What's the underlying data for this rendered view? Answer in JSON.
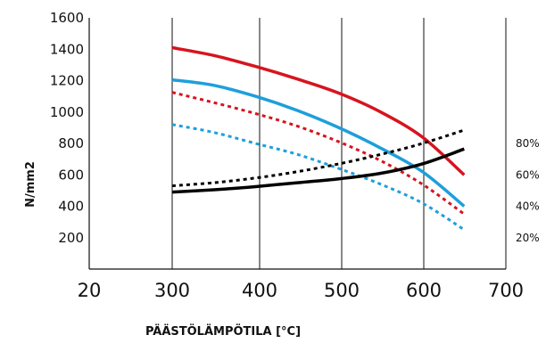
{
  "chart_data": {
    "type": "line",
    "xlabel": "PÄÄSTÖLÄMPÖTILA [°C]",
    "ylabel": "N/mm2",
    "xlim": [
      300,
      700
    ],
    "ylim": [
      0,
      1600
    ],
    "x_tick_labels": [
      "20",
      "300",
      "400",
      "500",
      "600",
      "700"
    ],
    "y_ticks": [
      200,
      400,
      600,
      800,
      1000,
      1200,
      1400,
      1600
    ],
    "y_tick_labels": [
      "200",
      "400",
      "600",
      "800",
      "1000",
      "1200",
      "1400",
      "1600"
    ],
    "right_axis": {
      "labels": [
        "20%",
        "40%",
        "60%",
        "80%"
      ],
      "values": [
        200,
        400,
        600,
        800
      ]
    },
    "grid": "vertical",
    "series": [
      {
        "color": "#d7141e",
        "style": "solid",
        "x": [
          300,
          350,
          400,
          450,
          500,
          550,
          600,
          650
        ],
        "y": [
          1410,
          1360,
          1290,
          1210,
          1120,
          1000,
          840,
          600
        ]
      },
      {
        "color": "#d7141e",
        "style": "dotted",
        "x": [
          300,
          350,
          400,
          450,
          500,
          550,
          600,
          650
        ],
        "y": [
          1125,
          1060,
          990,
          910,
          810,
          690,
          540,
          350
        ]
      },
      {
        "color": "#1e9fdb",
        "style": "solid",
        "x": [
          300,
          350,
          400,
          450,
          500,
          550,
          600,
          650
        ],
        "y": [
          1205,
          1170,
          1100,
          1010,
          900,
          770,
          620,
          400
        ]
      },
      {
        "color": "#1e9fdb",
        "style": "dotted",
        "x": [
          300,
          350,
          400,
          450,
          500,
          550,
          600,
          650
        ],
        "y": [
          920,
          870,
          800,
          730,
          640,
          540,
          420,
          250
        ]
      },
      {
        "color": "#000000",
        "style": "solid",
        "x": [
          300,
          350,
          400,
          450,
          500,
          550,
          600,
          650
        ],
        "y": [
          490,
          505,
          525,
          550,
          575,
          610,
          670,
          765
        ]
      },
      {
        "color": "#000000",
        "style": "dotted",
        "x": [
          300,
          350,
          400,
          450,
          500,
          550,
          600,
          650
        ],
        "y": [
          530,
          550,
          580,
          620,
          670,
          730,
          800,
          885
        ]
      }
    ]
  }
}
